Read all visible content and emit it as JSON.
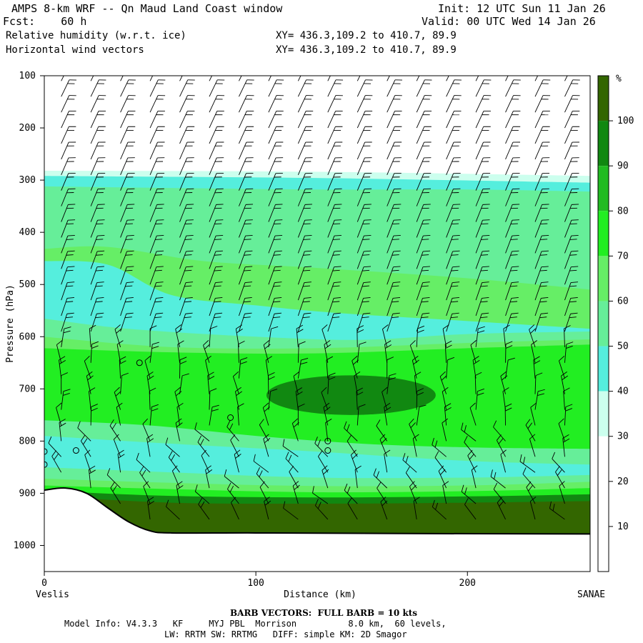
{
  "header": {
    "title": "AMPS 8-km WRF -- Qn Maud Land Coast window",
    "fcst": "Fcst:    60 h",
    "init": "Init: 12 UTC Sun 11 Jan 26",
    "valid": "Valid: 00 UTC Wed 14 Jan 26",
    "field1": "Relative humidity (w.r.t. ice)",
    "field1_xy": "XY= 436.3,109.2 to 410.7, 89.9",
    "field2": "Horizontal wind vectors",
    "field2_xy": "XY= 436.3,109.2 to 410.7, 89.9"
  },
  "footer": {
    "barb_note": "BARB VECTORS:  FULL BARB = 10 kts",
    "model_line1": "Model Info: V4.3.3   KF     MYJ PBL  Morrison          8.0 km,  60 levels,",
    "model_line2": "LW: RRTM SW: RRTMG   DIFF: simple KM: 2D Smagor"
  },
  "chart_data": {
    "type": "heatmap",
    "xlabel": "Distance (km)",
    "ylabel": "Pressure (hPa)",
    "x_ticks": [
      "0",
      "100",
      "200"
    ],
    "x_tick_values": [
      0,
      100,
      200
    ],
    "y_ticks": [
      "100",
      "200",
      "300",
      "400",
      "500",
      "600",
      "700",
      "800",
      "900",
      "1000"
    ],
    "y_tick_values": [
      100,
      200,
      300,
      400,
      500,
      600,
      700,
      800,
      900,
      1000
    ],
    "xlim": [
      0,
      258
    ],
    "ylim": [
      1050,
      100
    ],
    "left_label": "Veslis",
    "right_label": "SANAE",
    "colorbar_unit": "%",
    "colorbar_levels": [
      "10",
      "20",
      "30",
      "40",
      "50",
      "60",
      "70",
      "80",
      "90",
      "100"
    ],
    "colorbar_colors": [
      "#ffffff",
      "#ffffff",
      "#ffffff",
      "#ccffee",
      "#55eedd",
      "#66ee99",
      "#66ee66",
      "#22ee22",
      "#22bb22",
      "#118811",
      "#336600"
    ],
    "rh_bands": [
      {
        "level": "30-40",
        "color": "#ccffee",
        "top": [
          [
            0,
            282
          ],
          [
            128,
            284
          ],
          [
            258,
            292
          ]
        ]
      },
      {
        "level": "40-50",
        "color": "#55eedd",
        "top": [
          [
            0,
            292
          ],
          [
            128,
            296
          ],
          [
            258,
            305
          ]
        ]
      },
      {
        "level": "60-70",
        "color": "#66ee99",
        "top": [
          [
            0,
            312
          ],
          [
            60,
            315
          ],
          [
            128,
            318
          ],
          [
            200,
            318
          ],
          [
            258,
            322
          ]
        ]
      },
      {
        "level": "70-80",
        "color": "#66ee66",
        "top": [
          [
            0,
            432
          ],
          [
            30,
            428
          ],
          [
            75,
            455
          ],
          [
            128,
            468
          ],
          [
            200,
            488
          ],
          [
            258,
            510
          ]
        ]
      },
      {
        "level": "50-60",
        "color": "#55eedd",
        "top": [
          [
            0,
            455
          ],
          [
            30,
            462
          ],
          [
            60,
            520
          ],
          [
            100,
            540
          ],
          [
            140,
            555
          ],
          [
            200,
            570
          ],
          [
            258,
            585
          ]
        ]
      },
      {
        "level": "60-70",
        "color": "#66ee99",
        "top": [
          [
            0,
            565
          ],
          [
            40,
            585
          ],
          [
            100,
            600
          ],
          [
            150,
            606
          ],
          [
            200,
            595
          ],
          [
            258,
            590
          ]
        ]
      },
      {
        "level": "70-80",
        "color": "#66ee66",
        "top": [
          [
            0,
            600
          ],
          [
            60,
            620
          ],
          [
            128,
            622
          ],
          [
            200,
            612
          ],
          [
            258,
            605
          ]
        ]
      },
      {
        "level": "80-90",
        "color": "#22ee22",
        "top": [
          [
            0,
            622
          ],
          [
            60,
            630
          ],
          [
            128,
            632
          ],
          [
            200,
            622
          ],
          [
            258,
            615
          ]
        ]
      },
      {
        "level": "60-70 low",
        "color": "#66ee99",
        "top": [
          [
            0,
            760
          ],
          [
            50,
            770
          ],
          [
            100,
            790
          ],
          [
            150,
            805
          ],
          [
            200,
            812
          ],
          [
            258,
            815
          ]
        ]
      },
      {
        "level": "50-60 low",
        "color": "#55eedd",
        "top": [
          [
            0,
            790
          ],
          [
            60,
            805
          ],
          [
            128,
            820
          ],
          [
            200,
            838
          ],
          [
            258,
            845
          ]
        ]
      },
      {
        "level": "60-70 bl",
        "color": "#66ee99",
        "top": [
          [
            0,
            850
          ],
          [
            60,
            860
          ],
          [
            128,
            870
          ],
          [
            200,
            870
          ],
          [
            258,
            865
          ]
        ]
      },
      {
        "level": "70-80 bl",
        "color": "#66ee66",
        "top": [
          [
            0,
            872
          ],
          [
            60,
            880
          ],
          [
            128,
            886
          ],
          [
            200,
            885
          ],
          [
            258,
            878
          ]
        ]
      },
      {
        "level": "80-90 bl",
        "color": "#22ee22",
        "top": [
          [
            0,
            885
          ],
          [
            60,
            892
          ],
          [
            128,
            898
          ],
          [
            200,
            896
          ],
          [
            258,
            890
          ]
        ]
      },
      {
        "level": "90-100 bl",
        "color": "#118811",
        "top": [
          [
            0,
            895
          ],
          [
            60,
            905
          ],
          [
            128,
            908
          ],
          [
            200,
            906
          ],
          [
            258,
            902
          ]
        ]
      },
      {
        "level": "100+ bl",
        "color": "#336600",
        "top": [
          [
            0,
            905
          ],
          [
            60,
            918
          ],
          [
            128,
            920
          ],
          [
            200,
            918
          ],
          [
            258,
            915
          ]
        ]
      }
    ],
    "rh_max_core": {
      "level": "90-100",
      "color": "#118811",
      "center_km": 145,
      "center_hpa": 712,
      "half_width_km": 40,
      "half_height_hpa": 38
    },
    "terrain_surface": [
      [
        0,
        894
      ],
      [
        10,
        890
      ],
      [
        20,
        900
      ],
      [
        30,
        928
      ],
      [
        40,
        955
      ],
      [
        50,
        972
      ],
      [
        60,
        976
      ],
      [
        100,
        976
      ],
      [
        160,
        977
      ],
      [
        258,
        978
      ]
    ],
    "wind_columns_km": [
      8,
      22,
      36,
      50,
      64,
      78,
      92,
      106,
      120,
      134,
      148,
      162,
      176,
      190,
      204,
      218,
      232,
      246
    ],
    "wind_levels_hpa": [
      110,
      140,
      170,
      200,
      230,
      260,
      290,
      320,
      350,
      380,
      410,
      440,
      470,
      500,
      530,
      560,
      590,
      620,
      650,
      680,
      710,
      740,
      770,
      800,
      830,
      860,
      890,
      920,
      950
    ]
  }
}
